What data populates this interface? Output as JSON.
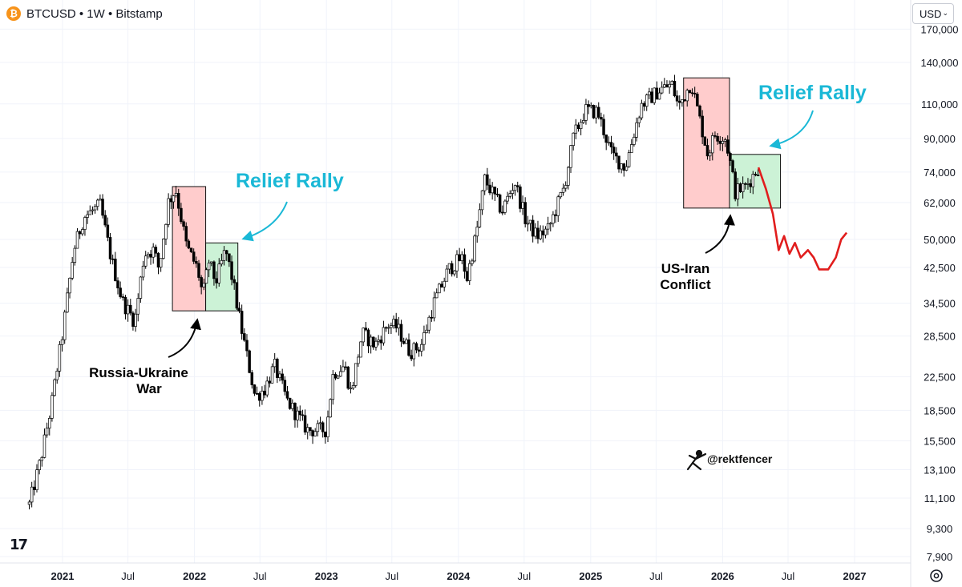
{
  "header": {
    "symbol": "BTCUSD",
    "sep1": "•",
    "interval": "1W",
    "sep2": "•",
    "exchange": "Bitstamp",
    "coin_glyph": "₿"
  },
  "currency": {
    "label": "USD",
    "chevron": "⌄"
  },
  "logo_text": "17",
  "watermark": "@rektfencer",
  "annotations": {
    "relief_left": "Relief Rally",
    "relief_right": "Relief Rally",
    "war_line1": "Russia-Ukraine",
    "war_line2": "War",
    "iran_line1": "US-Iran",
    "iran_line2": "Conflict"
  },
  "colors": {
    "accent_blue": "#1ab8d6",
    "up": "#ffffff",
    "down": "#000000",
    "projection": "#e11d1d",
    "red_box": "#ffcccc",
    "green_box": "#ccf2d6"
  },
  "chart_data": {
    "type": "candlestick",
    "title": "BTCUSD · 1W · Bitstamp",
    "y_scale": "log",
    "y_ticks": [
      "170,000",
      "140,000",
      "110,000",
      "90,000",
      "74,000",
      "62,000",
      "50,000",
      "42,500",
      "34,500",
      "28,500",
      "22,500",
      "18,500",
      "15,500",
      "13,100",
      "11,100",
      "9,300",
      "7,900"
    ],
    "x_ticks": [
      "2021",
      "Jul",
      "2022",
      "Jul",
      "2023",
      "Jul",
      "2024",
      "Jul",
      "2025",
      "Jul",
      "2026",
      "Jul",
      "2027"
    ],
    "price_path": [
      [
        "2020-10-01",
        10700
      ],
      [
        "2020-11-01",
        13800
      ],
      [
        "2020-12-01",
        19000
      ],
      [
        "2021-01-01",
        29000
      ],
      [
        "2021-02-01",
        47000
      ],
      [
        "2021-03-01",
        57000
      ],
      [
        "2021-04-15",
        61000
      ],
      [
        "2021-05-15",
        45000
      ],
      [
        "2021-06-15",
        35000
      ],
      [
        "2021-07-20",
        31000
      ],
      [
        "2021-08-15",
        46000
      ],
      [
        "2021-09-10",
        47000
      ],
      [
        "2021-09-25",
        42000
      ],
      [
        "2021-10-20",
        62000
      ],
      [
        "2021-11-10",
        67000
      ],
      [
        "2021-12-10",
        48000
      ],
      [
        "2022-01-10",
        42000
      ],
      [
        "2022-01-24",
        36000
      ],
      [
        "2022-02-10",
        44000
      ],
      [
        "2022-03-01",
        39000
      ],
      [
        "2022-03-28",
        47000
      ],
      [
        "2022-04-15",
        40000
      ],
      [
        "2022-05-10",
        30000
      ],
      [
        "2022-06-18",
        20000
      ],
      [
        "2022-07-15",
        21000
      ],
      [
        "2022-08-10",
        24000
      ],
      [
        "2022-09-15",
        19500
      ],
      [
        "2022-11-10",
        16500
      ],
      [
        "2022-12-31",
        16500
      ],
      [
        "2023-01-20",
        23000
      ],
      [
        "2023-02-20",
        24000
      ],
      [
        "2023-03-10",
        20500
      ],
      [
        "2023-04-10",
        29000
      ],
      [
        "2023-05-15",
        27000
      ],
      [
        "2023-06-20",
        30500
      ],
      [
        "2023-07-15",
        30000
      ],
      [
        "2023-08-20",
        26000
      ],
      [
        "2023-09-20",
        27000
      ],
      [
        "2023-10-25",
        34500
      ],
      [
        "2023-12-05",
        42000
      ],
      [
        "2024-01-10",
        45000
      ],
      [
        "2024-01-25",
        40000
      ],
      [
        "2024-02-20",
        52000
      ],
      [
        "2024-03-14",
        71000
      ],
      [
        "2024-05-01",
        59000
      ],
      [
        "2024-06-05",
        70000
      ],
      [
        "2024-07-05",
        56000
      ],
      [
        "2024-08-05",
        51000
      ],
      [
        "2024-09-06",
        53000
      ],
      [
        "2024-10-20",
        68000
      ],
      [
        "2024-11-15",
        91000
      ],
      [
        "2024-12-17",
        106000
      ],
      [
        "2025-01-20",
        105000
      ],
      [
        "2025-02-28",
        82000
      ],
      [
        "2025-04-07",
        76000
      ],
      [
        "2025-05-20",
        109000
      ],
      [
        "2025-07-14",
        120000
      ],
      [
        "2025-08-14",
        123000
      ],
      [
        "2025-09-01",
        108000
      ],
      [
        "2025-10-06",
        125000
      ],
      [
        "2025-11-21",
        82000
      ],
      [
        "2025-12-10",
        92000
      ],
      [
        "2026-01-10",
        90000
      ],
      [
        "2026-02-05",
        66000
      ],
      [
        "2026-03-05",
        68000
      ],
      [
        "2026-04-10",
        76000
      ]
    ],
    "projection_path": [
      [
        "2026-04-10",
        76000
      ],
      [
        "2026-05-01",
        67000
      ],
      [
        "2026-05-20",
        58000
      ],
      [
        "2026-06-05",
        47000
      ],
      [
        "2026-06-20",
        51000
      ],
      [
        "2026-07-05",
        46000
      ],
      [
        "2026-07-20",
        49000
      ],
      [
        "2026-08-05",
        45000
      ],
      [
        "2026-08-25",
        47000
      ],
      [
        "2026-09-10",
        45000
      ],
      [
        "2026-09-25",
        42000
      ],
      [
        "2026-10-20",
        42000
      ],
      [
        "2026-11-10",
        45000
      ],
      [
        "2026-11-25",
        50000
      ],
      [
        "2026-12-10",
        52000
      ]
    ],
    "boxes": [
      {
        "kind": "red",
        "from": "2021-11-01",
        "to": "2022-02-01",
        "low": 33000,
        "high": 68000
      },
      {
        "kind": "green",
        "from": "2022-02-01",
        "to": "2022-05-01",
        "low": 33000,
        "high": 49000
      },
      {
        "kind": "red",
        "from": "2025-09-15",
        "to": "2026-01-20",
        "low": 60000,
        "high": 128000
      },
      {
        "kind": "green",
        "from": "2026-01-20",
        "to": "2026-06-10",
        "low": 60000,
        "high": 82000
      }
    ]
  }
}
